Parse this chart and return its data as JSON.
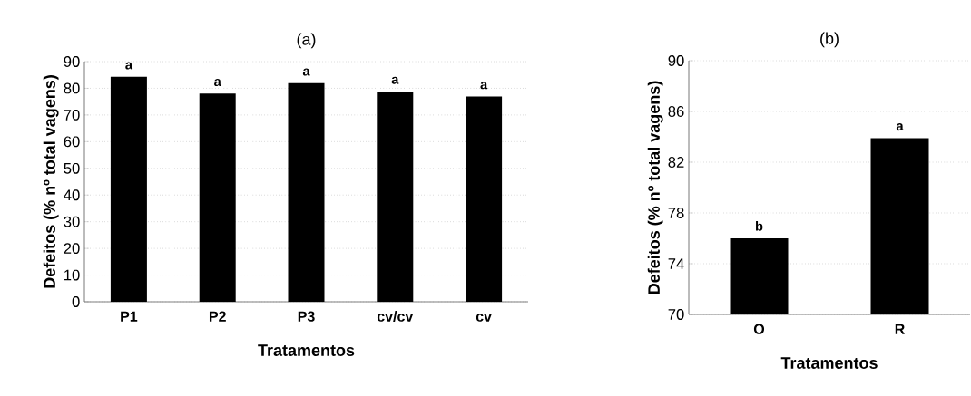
{
  "chart_data": [
    {
      "type": "bar",
      "title": "(a)",
      "xlabel": "Tratamentos",
      "ylabel": "Defeitos (% nº total vagens)",
      "categories": [
        "P1",
        "P2",
        "P3",
        "cv/cv",
        "cv"
      ],
      "values": [
        84.3,
        78.0,
        81.9,
        78.8,
        76.9
      ],
      "color": "#000000",
      "ylim": [
        0,
        90
      ],
      "yticks": [
        0,
        10,
        20,
        30,
        40,
        50,
        60,
        70,
        80,
        90
      ],
      "grid": "y",
      "annotations": [
        {
          "text": "a",
          "x": "P1",
          "y": 84.3
        },
        {
          "text": "a",
          "x": "P2",
          "y": 78.0
        },
        {
          "text": "a",
          "x": "P3",
          "y": 81.9
        },
        {
          "text": "a",
          "x": "cv/cv",
          "y": 78.8
        },
        {
          "text": "a",
          "x": "cv",
          "y": 76.9
        }
      ]
    },
    {
      "type": "bar",
      "title": "(b)",
      "xlabel": "Tratamentos",
      "ylabel": "Defeitos (% nº total vagens)",
      "categories": [
        "O",
        "R"
      ],
      "values": [
        76.0,
        83.9
      ],
      "color": "#000000",
      "ylim": [
        70,
        90
      ],
      "yticks": [
        70,
        74,
        78,
        82,
        86,
        90
      ],
      "grid": "y",
      "annotations": [
        {
          "text": "b",
          "x": "O",
          "y": 76.0
        },
        {
          "text": "a",
          "x": "R",
          "y": 83.9
        }
      ]
    }
  ]
}
